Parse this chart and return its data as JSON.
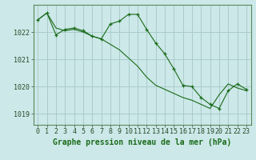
{
  "background_color": "#cce8e8",
  "grid_color": "#aacccc",
  "line_color": "#1a6b1a",
  "marker_color": "#1a6b1a",
  "xlabel": "Graphe pression niveau de la mer (hPa)",
  "xlabel_fontsize": 7,
  "tick_fontsize": 6,
  "ylim": [
    1018.6,
    1023.0
  ],
  "yticks": [
    1019,
    1020,
    1021,
    1022
  ],
  "xlim": [
    -0.5,
    23.5
  ],
  "xticks": [
    0,
    1,
    2,
    3,
    4,
    5,
    6,
    7,
    8,
    9,
    10,
    11,
    12,
    13,
    14,
    15,
    16,
    17,
    18,
    19,
    20,
    21,
    22,
    23
  ],
  "series1_x": [
    0,
    1,
    2,
    3,
    4,
    5,
    6,
    7,
    8,
    9,
    10,
    11,
    12,
    13,
    14,
    15,
    16,
    17,
    18,
    19,
    20,
    21,
    22,
    23
  ],
  "series1_y": [
    1022.45,
    1022.7,
    1022.15,
    1022.05,
    1022.1,
    1022.0,
    1021.85,
    1021.75,
    1021.55,
    1021.35,
    1021.05,
    1020.75,
    1020.35,
    1020.05,
    1019.9,
    1019.75,
    1019.6,
    1019.5,
    1019.35,
    1019.2,
    1019.7,
    1020.1,
    1019.95,
    1019.85
  ],
  "series2_x": [
    0,
    1,
    2,
    3,
    4,
    5,
    6,
    7,
    8,
    9,
    10,
    11,
    12,
    13,
    14,
    15,
    16,
    17,
    18,
    19,
    20,
    21,
    22,
    23
  ],
  "series2_y": [
    1022.45,
    1022.7,
    1021.9,
    1022.1,
    1022.15,
    1022.05,
    1021.85,
    1021.75,
    1022.3,
    1022.4,
    1022.65,
    1022.65,
    1022.1,
    1021.6,
    1021.2,
    1020.65,
    1020.05,
    1020.0,
    1019.6,
    1019.35,
    1019.2,
    1019.85,
    1020.1,
    1019.9
  ]
}
